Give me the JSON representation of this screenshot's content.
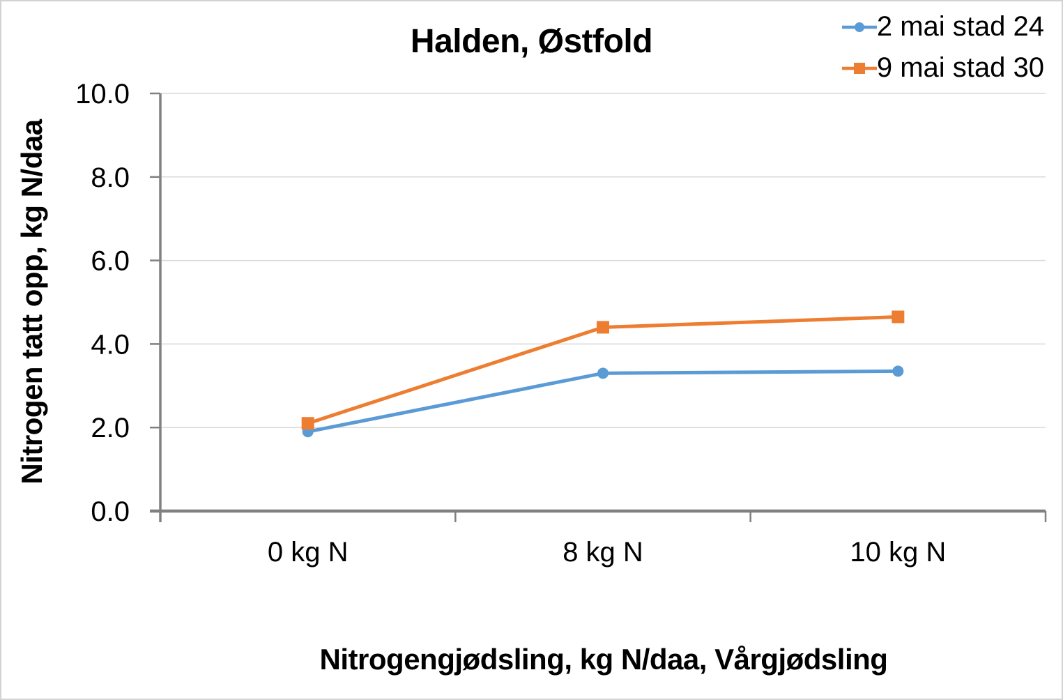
{
  "chart_data": {
    "type": "line",
    "title": "Halden, Østfold",
    "categories": [
      "0 kg N",
      "8 kg N",
      "10 kg N"
    ],
    "series": [
      {
        "name": "2 mai stad 24",
        "color": "#5B9BD5",
        "marker": "circle",
        "values": [
          1.9,
          3.3,
          3.35
        ]
      },
      {
        "name": "9 mai stad 30",
        "color": "#ED7D31",
        "marker": "square",
        "values": [
          2.1,
          4.4,
          4.65
        ]
      }
    ],
    "xlabel": "Nitrogengjødsling, kg N/daa, Vårgjødsling",
    "ylabel": "Nitrogen tatt opp, kg N/daa",
    "ylim": [
      0,
      10
    ],
    "yticks": [
      0,
      2,
      4,
      6,
      8,
      10
    ],
    "ytick_labels": [
      "0.0",
      "2.0",
      "4.0",
      "6.0",
      "8.0",
      "10.0"
    ],
    "grid": true,
    "legend_position": "top-right",
    "colors": {
      "gridline": "#D9D9D9",
      "axis": "#808080",
      "text": "#000000",
      "background": "#FFFFFF",
      "border": "#D2D2D2"
    }
  }
}
